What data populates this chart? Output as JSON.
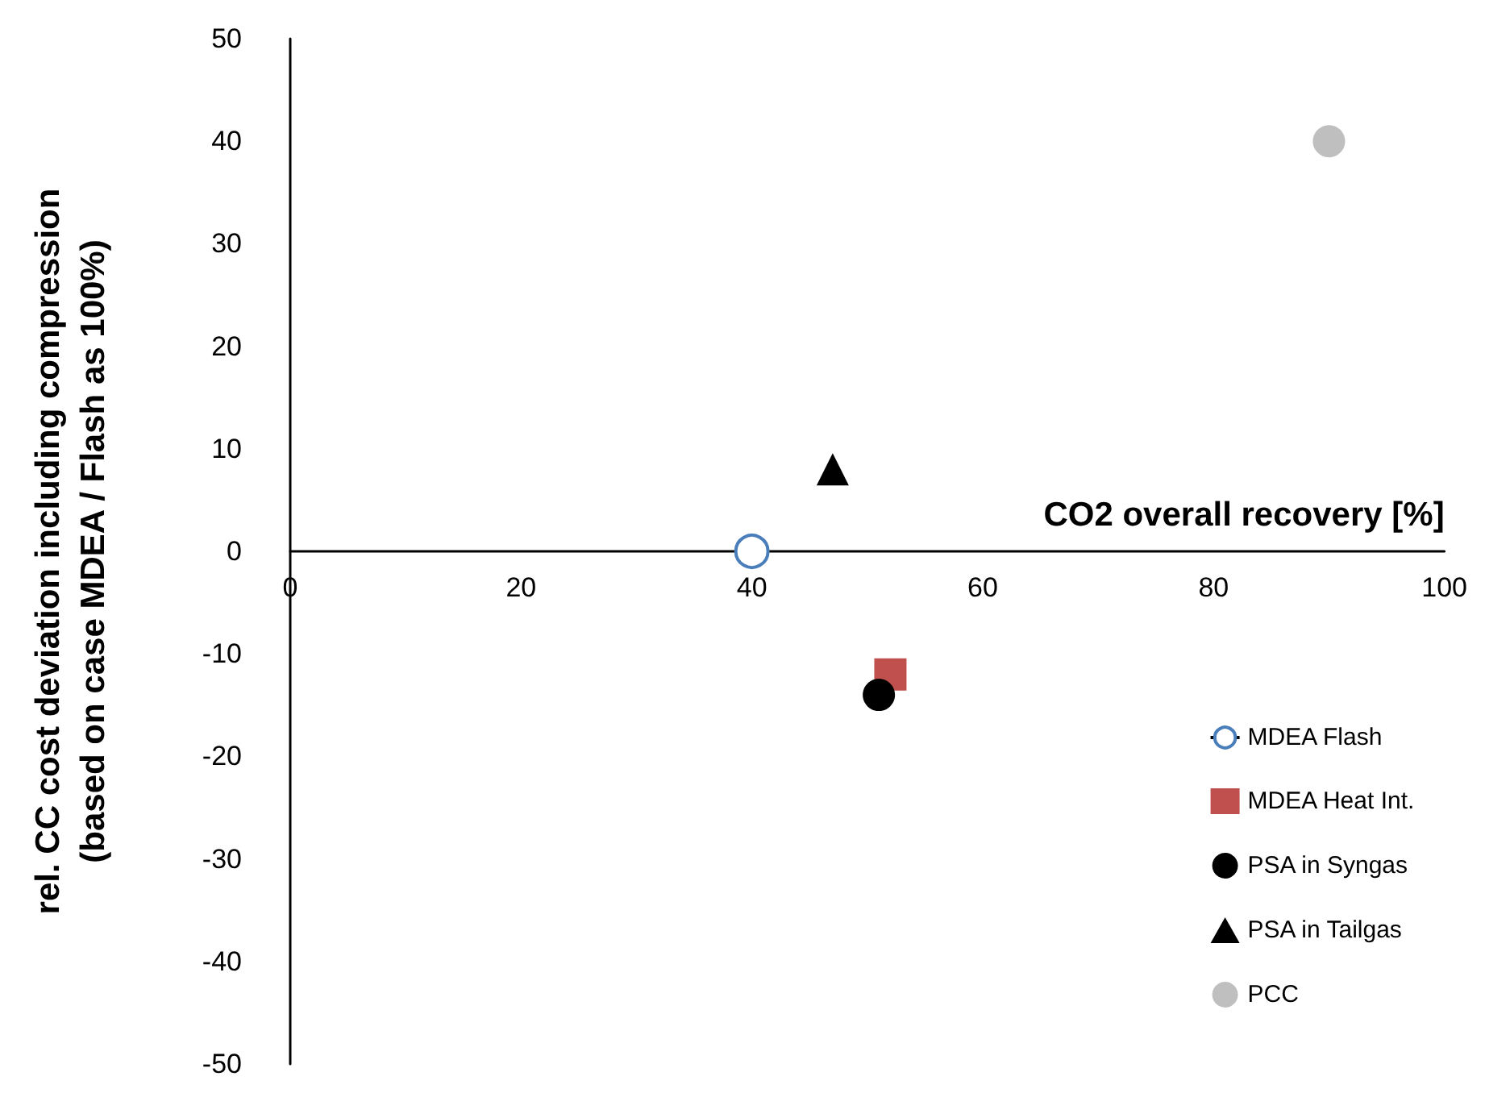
{
  "chart_data": {
    "type": "scatter",
    "xlabel": "CO2 overall recovery [%]",
    "ylabel": "rel. CC cost deviation including compression\n(based on case MDEA / Flash as 100%)",
    "xlim": [
      0,
      100
    ],
    "xticks": [
      0,
      20,
      40,
      60,
      80,
      100
    ],
    "ylim": [
      -50,
      50
    ],
    "yticks": [
      -50,
      -40,
      -30,
      -20,
      -10,
      0,
      10,
      20,
      30,
      40,
      50
    ],
    "grid": false,
    "legend": "bottom right",
    "series": [
      {
        "name": "MDEA Flash",
        "type": "line",
        "marker": "circle",
        "color": "#4a7ebb",
        "x": [
          40
        ],
        "values": [
          0
        ]
      },
      {
        "name": "MDEA Heat Int.",
        "marker": "square",
        "color": "#c0504d",
        "x": [
          52
        ],
        "values": [
          -12
        ]
      },
      {
        "name": "PSA in Syngas",
        "marker": "circle",
        "color": "#000000",
        "x": [
          51
        ],
        "values": [
          -14
        ]
      },
      {
        "name": "PSA in Tailgas",
        "marker": "triangle",
        "color": "#000000",
        "x": [
          47
        ],
        "values": [
          8
        ]
      },
      {
        "name": "PCC",
        "marker": "circle",
        "color": "#bfbfbf",
        "x": [
          90
        ],
        "values": [
          40
        ]
      }
    ]
  }
}
